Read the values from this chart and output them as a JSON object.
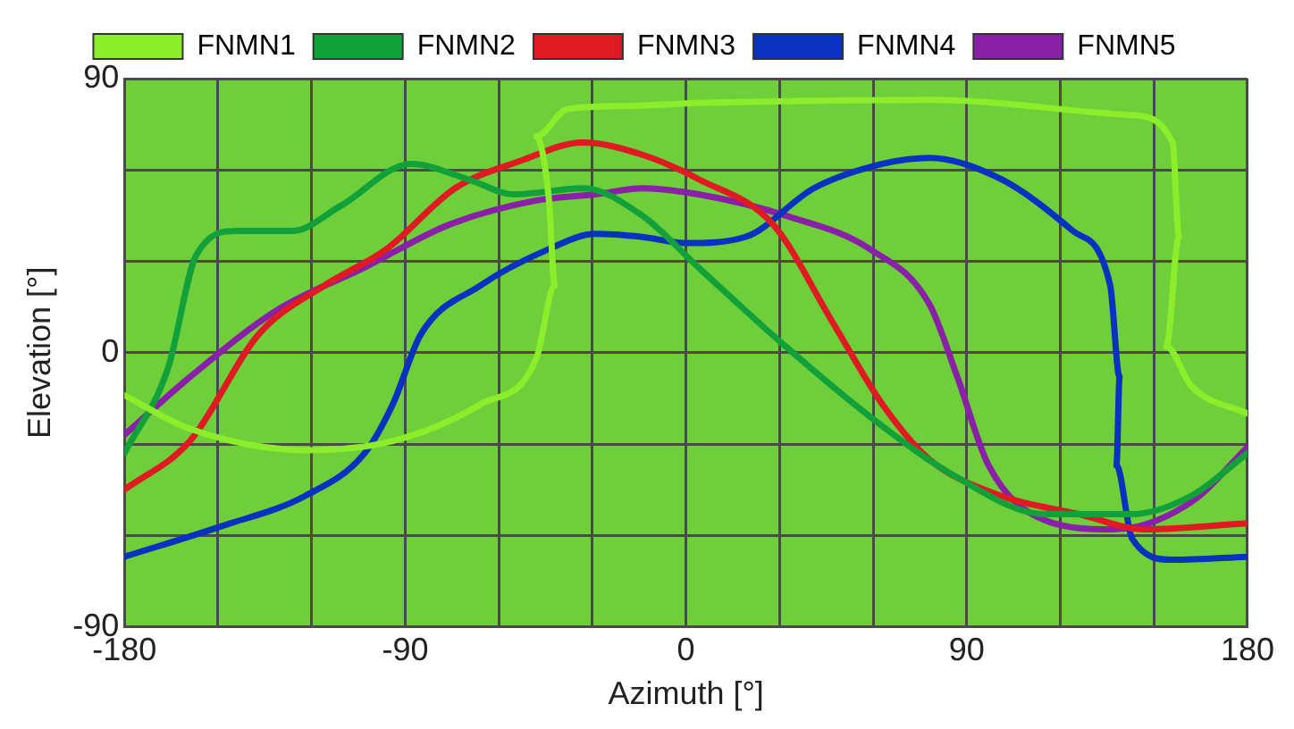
{
  "chart_data": {
    "type": "line",
    "xlabel": "Azimuth [°]",
    "ylabel": "Elevation [°]",
    "xlim": [
      -180,
      180
    ],
    "ylim": [
      -90,
      90
    ],
    "xticks": [
      -180,
      {
        "value": -150,
        "label": null
      },
      {
        "value": -120,
        "label": null
      },
      -90,
      {
        "value": -60,
        "label": null
      },
      {
        "value": -30,
        "label": null
      },
      0,
      {
        "value": 30,
        "label": null
      },
      {
        "value": 60,
        "label": null
      },
      90,
      {
        "value": 120,
        "label": null
      },
      {
        "value": 150,
        "label": null
      },
      180
    ],
    "yticks": [
      -90,
      {
        "value": -60,
        "label": null
      },
      {
        "value": -30,
        "label": null
      },
      0,
      {
        "value": 30,
        "label": null
      },
      {
        "value": 60,
        "label": null
      },
      90
    ],
    "grid": true,
    "legend": "top",
    "marker": "none",
    "line_style": "solid",
    "series": [
      {
        "name": "FNMN1",
        "color": "#8ced2a",
        "x": [
          -180,
          -159,
          -122,
          -94,
          -66,
          -48,
          -42,
          -44,
          -48,
          -38,
          -20,
          4,
          78,
          143,
          156,
          158,
          154,
          162,
          180
        ],
        "values": [
          -14,
          -25,
          -32,
          -29,
          -17,
          -2,
          22,
          51,
          71,
          80,
          81,
          82,
          83,
          78,
          69,
          38,
          2,
          -11,
          -20
        ]
      },
      {
        "name": "FNMN2",
        "color": "#12a03a",
        "x": [
          -180,
          -166,
          -157,
          -144,
          -126,
          -111,
          -88,
          -70,
          -55,
          -33,
          -14,
          4,
          32,
          59,
          87,
          115,
          143,
          162,
          180
        ],
        "values": [
          -33,
          -5,
          32,
          40,
          40,
          48,
          62,
          57,
          52,
          54,
          45,
          28,
          2,
          -21,
          -41,
          -53,
          -53,
          -47,
          -33
        ]
      },
      {
        "name": "FNMN3",
        "color": "#e01a22",
        "x": [
          -180,
          -159,
          -137,
          -116,
          -96,
          -74,
          -53,
          -33,
          -14,
          4,
          28,
          47,
          63,
          78,
          101,
          126,
          147,
          180
        ],
        "values": [
          -45,
          -29,
          6,
          22,
          34,
          54,
          63,
          69,
          65,
          57,
          42,
          10,
          -17,
          -35,
          -47,
          -53,
          -58,
          -56
        ]
      },
      {
        "name": "FNMN4",
        "color": "#0a32c0",
        "x": [
          -180,
          -149,
          -122,
          -103,
          -94,
          -85,
          -66,
          -44,
          -29,
          -14,
          0,
          19,
          41,
          63,
          78,
          101,
          124,
          136,
          139,
          138,
          143,
          156,
          180
        ],
        "values": [
          -67,
          -57,
          -47,
          -33,
          -17,
          6,
          22,
          34,
          39,
          38,
          36,
          38,
          54,
          62,
          64,
          57,
          40,
          22,
          -8,
          -37,
          -61,
          -68,
          -67
        ]
      },
      {
        "name": "FNMN5",
        "color": "#8a1fa8",
        "x": [
          -180,
          -159,
          -131,
          -103,
          -76,
          -48,
          -29,
          -14,
          4,
          32,
          59,
          78,
          87,
          97,
          115,
          137,
          162,
          180
        ],
        "values": [
          -27,
          -8,
          14,
          28,
          42,
          50,
          52,
          54,
          52,
          45,
          34,
          16,
          -8,
          -37,
          -55,
          -58,
          -49,
          -31
        ]
      }
    ]
  }
}
